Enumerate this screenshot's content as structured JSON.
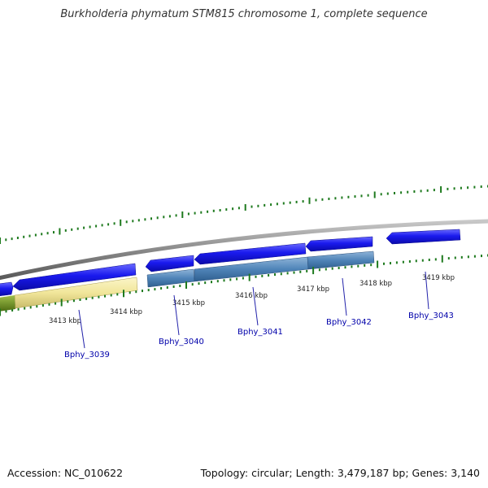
{
  "title": "Burkholderia phymatum STM815 chromosome 1, complete sequence",
  "accession": "Accession: NC_010622",
  "summary": "Topology: circular; Length: 3,479,187 bp; Genes: 3,140",
  "colors": {
    "gene_forward": "#1a1aee",
    "cds_blue": "#4f84b8",
    "cds_yellow": "#f1e69a",
    "cds_green": "#6d8f22",
    "tick_green": "#1e7a1e",
    "backbone": "#8a8a8a",
    "label_line": "#2222aa"
  },
  "position_labels": [
    "3413 kbp",
    "3414 kbp",
    "3415 kbp",
    "3416 kbp",
    "3417 kbp",
    "3418 kbp",
    "3419 kbp"
  ],
  "genes": [
    {
      "name": "Bphy_3039"
    },
    {
      "name": "Bphy_3040"
    },
    {
      "name": "Bphy_3041"
    },
    {
      "name": "Bphy_3042"
    },
    {
      "name": "Bphy_3043"
    }
  ]
}
